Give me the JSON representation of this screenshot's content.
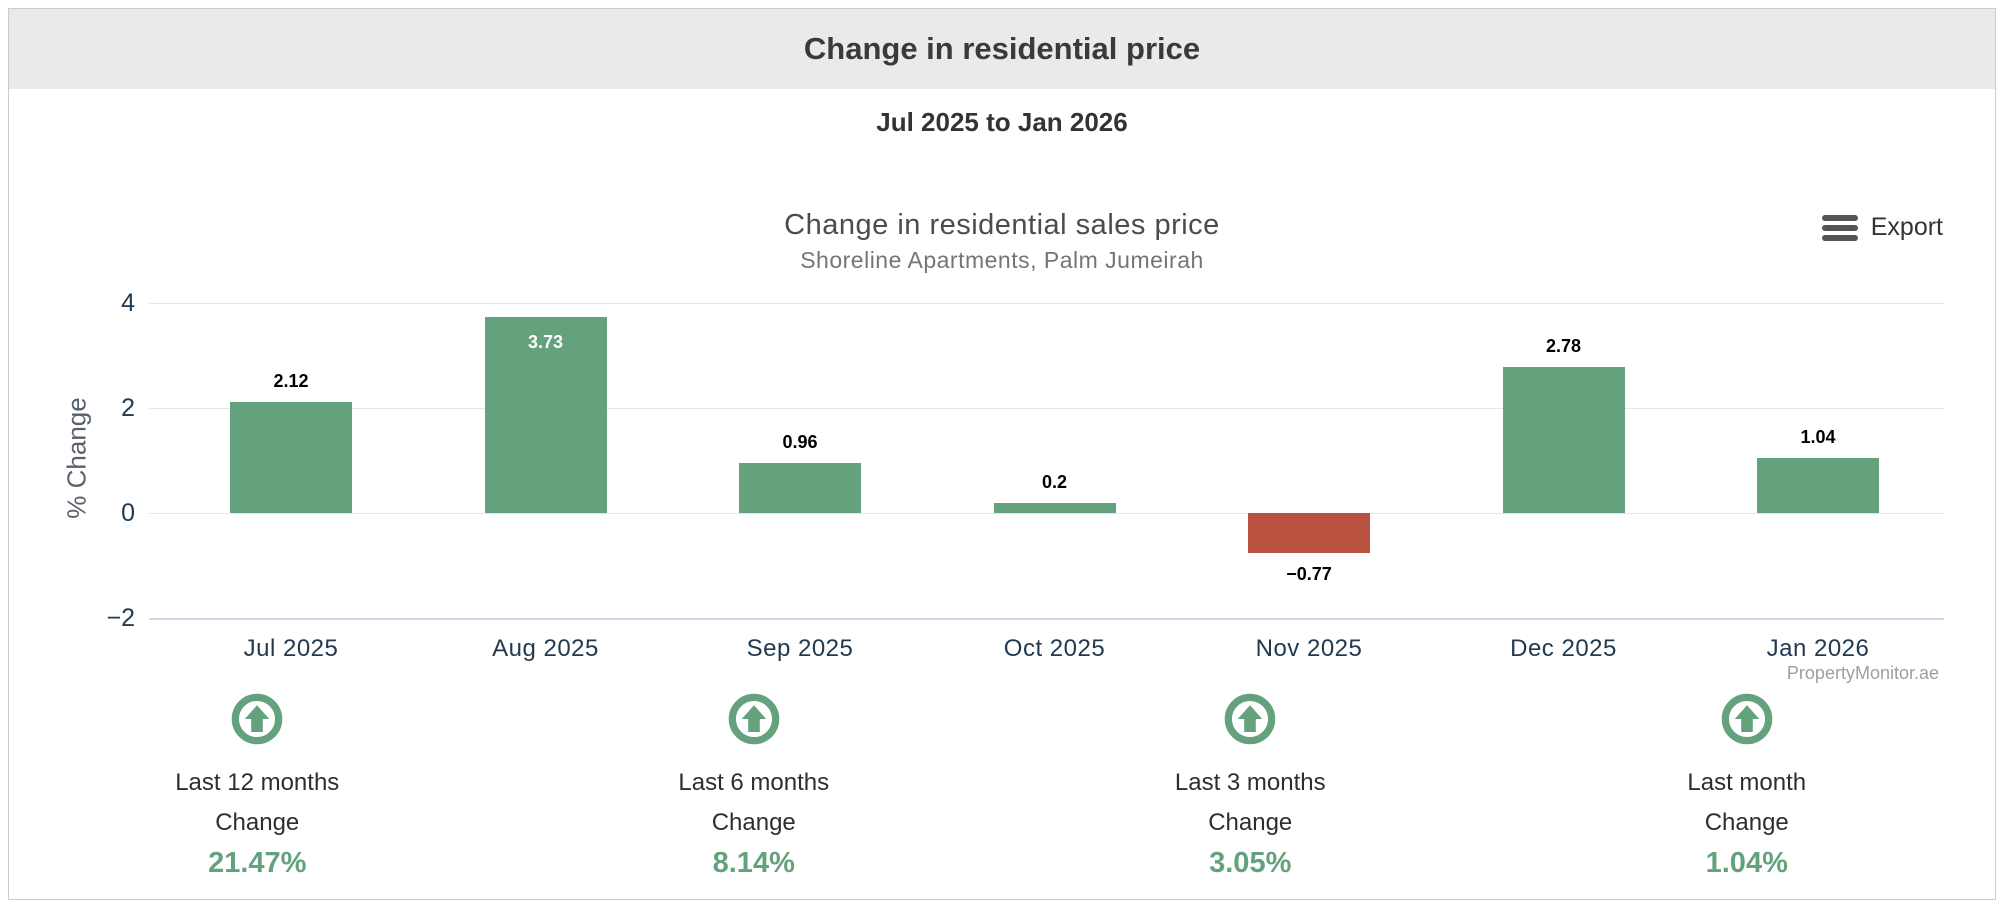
{
  "header": {
    "title": "Change in residential price"
  },
  "range_subtitle": "Jul 2025 to Jan 2026",
  "chart": {
    "export_label": "Export",
    "watermark": "PropertyMonitor.ae"
  },
  "chart_data": {
    "type": "bar",
    "title": "Change in residential sales price",
    "subtitle": "Shoreline Apartments, Palm Jumeirah",
    "categories": [
      "Jul 2025",
      "Aug 2025",
      "Sep 2025",
      "Oct 2025",
      "Nov 2025",
      "Dec 2025",
      "Jan 2026"
    ],
    "values": [
      2.12,
      3.73,
      0.96,
      0.2,
      -0.77,
      2.78,
      1.04
    ],
    "value_labels": [
      "2.12",
      "3.73",
      "0.96",
      "0.2",
      "−0.77",
      "2.78",
      "1.04"
    ],
    "label_inside": [
      false,
      true,
      false,
      false,
      false,
      false,
      false
    ],
    "xlabel": "",
    "ylabel": "% Change",
    "yticks": [
      4,
      2,
      0,
      -2
    ],
    "ytick_labels": [
      "4",
      "2",
      "0",
      "−2"
    ],
    "ylim": [
      -2,
      4.3
    ],
    "grid": true,
    "legend": false,
    "colors": {
      "positive": "#64a27e",
      "negative": "#b8513f",
      "grid": "#e6e6e6",
      "axis_line": "#ccd6eb",
      "tick_label": "#223a50"
    }
  },
  "summaries": [
    {
      "period": "Last 12 months",
      "label": "Change",
      "value": "21.47%"
    },
    {
      "period": "Last 6 months",
      "label": "Change",
      "value": "8.14%"
    },
    {
      "period": "Last 3 months",
      "label": "Change",
      "value": "3.05%"
    },
    {
      "period": "Last month",
      "label": "Change",
      "value": "1.04%"
    }
  ]
}
